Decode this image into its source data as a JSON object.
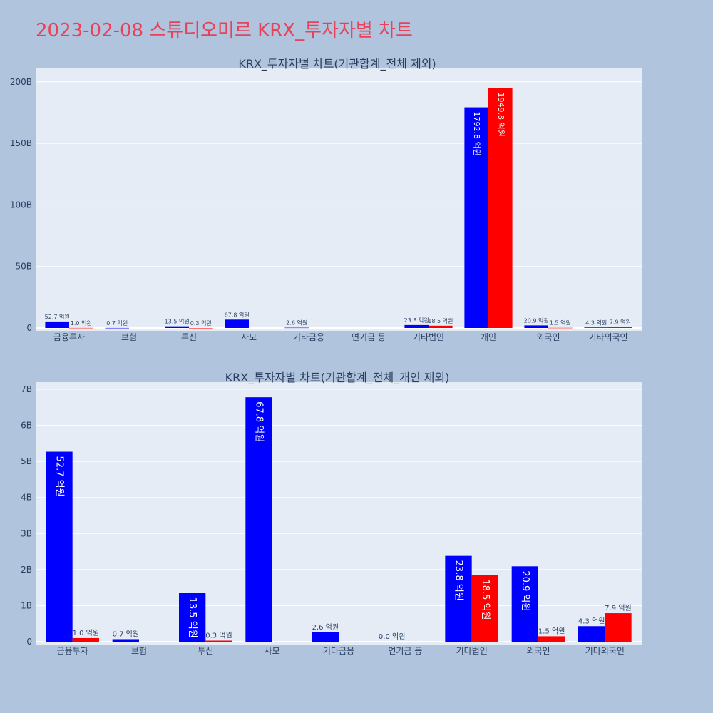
{
  "page": {
    "title": "2023-02-08 스튜디오미르 KRX_투자자별 차트"
  },
  "colors": {
    "background": "#b0c4de",
    "plot_bg": "#e5ecf6",
    "grid": "#ffffff",
    "title": "#e8425a",
    "text": "#2a3f5f",
    "buy": "#0000ff",
    "sell": "#ff0000"
  },
  "chart_data": [
    {
      "type": "bar",
      "title": "KRX_투자자별 차트(기관합계_전체 제외)",
      "categories": [
        "금융투자",
        "보험",
        "투신",
        "사모",
        "기타금융",
        "연기금 등",
        "기타법인",
        "개인",
        "외국인",
        "기타외국인"
      ],
      "series": [
        {
          "values": [
            5.27,
            0.07,
            1.35,
            6.78,
            0.26,
            0,
            2.38,
            179.28,
            2.09,
            0.43
          ],
          "labels": [
            "52.7 억원",
            "0.7 억원",
            "13.5 억원",
            "67.8 억원",
            "2.6 억원",
            "",
            "23.8 억원",
            "1792.8 억원",
            "20.9 억원",
            "4.3 억원"
          ]
        },
        {
          "values": [
            0.1,
            0,
            0.03,
            0,
            0,
            0,
            1.85,
            194.98,
            0.15,
            0.79
          ],
          "labels": [
            "1.0 억원",
            "",
            "0.3 억원",
            "",
            "",
            "",
            "18.5 억원",
            "1949.8 억원",
            "1.5 억원",
            "7.9 억원"
          ]
        }
      ],
      "yticks": [
        "0",
        "50B",
        "100B",
        "150B",
        "200B"
      ],
      "ytick_values": [
        0,
        50,
        100,
        150,
        200
      ],
      "ylim": [
        0,
        208
      ],
      "grid": true
    },
    {
      "type": "bar",
      "title": "KRX_투자자별 차트(기관합계_전체_개인 제외)",
      "categories": [
        "금융투자",
        "보험",
        "투신",
        "사모",
        "기타금융",
        "연기금 등",
        "기타법인",
        "외국인",
        "기타외국인"
      ],
      "series": [
        {
          "values": [
            5.27,
            0.07,
            1.35,
            6.78,
            0.26,
            0,
            2.38,
            2.09,
            0.43
          ],
          "labels": [
            "52.7 억원",
            "0.7 억원",
            "13.5 억원",
            "67.8 억원",
            "2.6 억원",
            "0.0 억원",
            "23.8 억원",
            "20.9 억원",
            "4.3 억원"
          ]
        },
        {
          "values": [
            0.1,
            0,
            0.03,
            0,
            0,
            0,
            1.85,
            0.15,
            0.79
          ],
          "labels": [
            "1.0 억원",
            "",
            "0.3 억원",
            "",
            "",
            "",
            "18.5 억원",
            "1.5 억원",
            "7.9 억원"
          ]
        }
      ],
      "yticks": [
        "0",
        "1B",
        "2B",
        "3B",
        "4B",
        "5B",
        "6B",
        "7B"
      ],
      "ytick_values": [
        0,
        1,
        2,
        3,
        4,
        5,
        6,
        7
      ],
      "ylim": [
        0,
        7.1
      ],
      "grid": true
    }
  ]
}
